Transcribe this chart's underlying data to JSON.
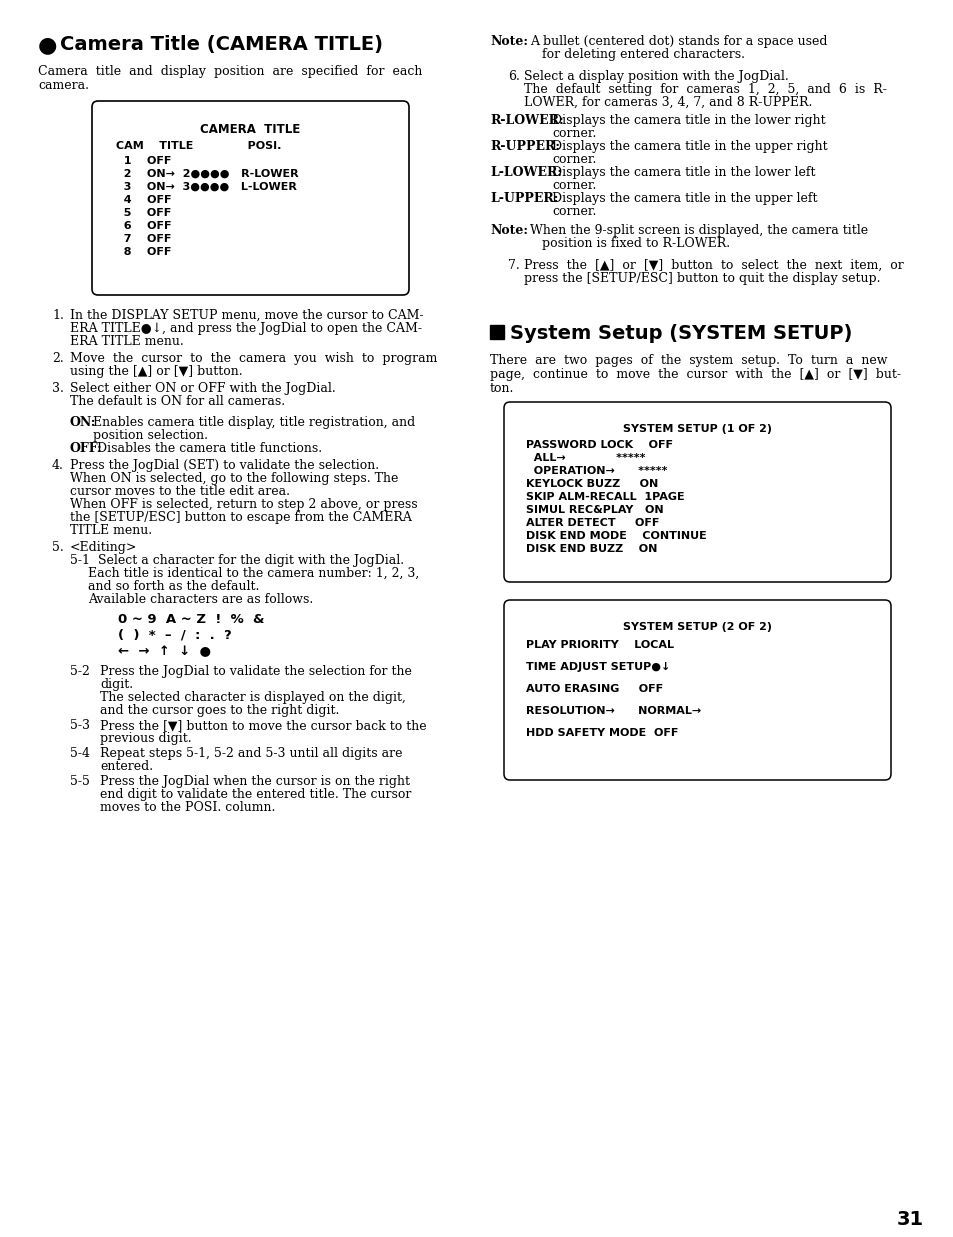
{
  "page_number": "31",
  "camera_box_header": "CAMERA  TITLE",
  "camera_box_col": "CAM    TITLE              POSI.",
  "camera_box_rows": [
    "  1    OFF",
    "  2    ON→  2●●●●   R-LOWER",
    "  3    ON→  3●●●●   L-LOWER",
    "  4    OFF",
    "  5    OFF",
    "  6    OFF",
    "  7    OFF",
    "  8    OFF"
  ],
  "sys_box1_header": "SYSTEM SETUP (1 OF 2)",
  "sys_box1_rows": [
    "PASSWORD LOCK    OFF",
    "  ALL→             *****",
    "  OPERATION→      *****",
    "KEYLOCK BUZZ     ON",
    "SKIP ALM-RECALL  1PAGE",
    "SIMUL REC&PLAY   ON",
    "ALTER DETECT     OFF",
    "DISK END MODE    CONTINUE",
    "DISK END BUZZ    ON"
  ],
  "sys_box2_header": "SYSTEM SETUP (2 OF 2)",
  "sys_box2_rows": [
    "PLAY PRIORITY    LOCAL",
    "",
    "TIME ADJUST SETUP●↓",
    "",
    "AUTO ERASING     OFF",
    "",
    "RESOLUTION→      NORMAL→",
    "",
    "HDD SAFETY MODE  OFF"
  ]
}
